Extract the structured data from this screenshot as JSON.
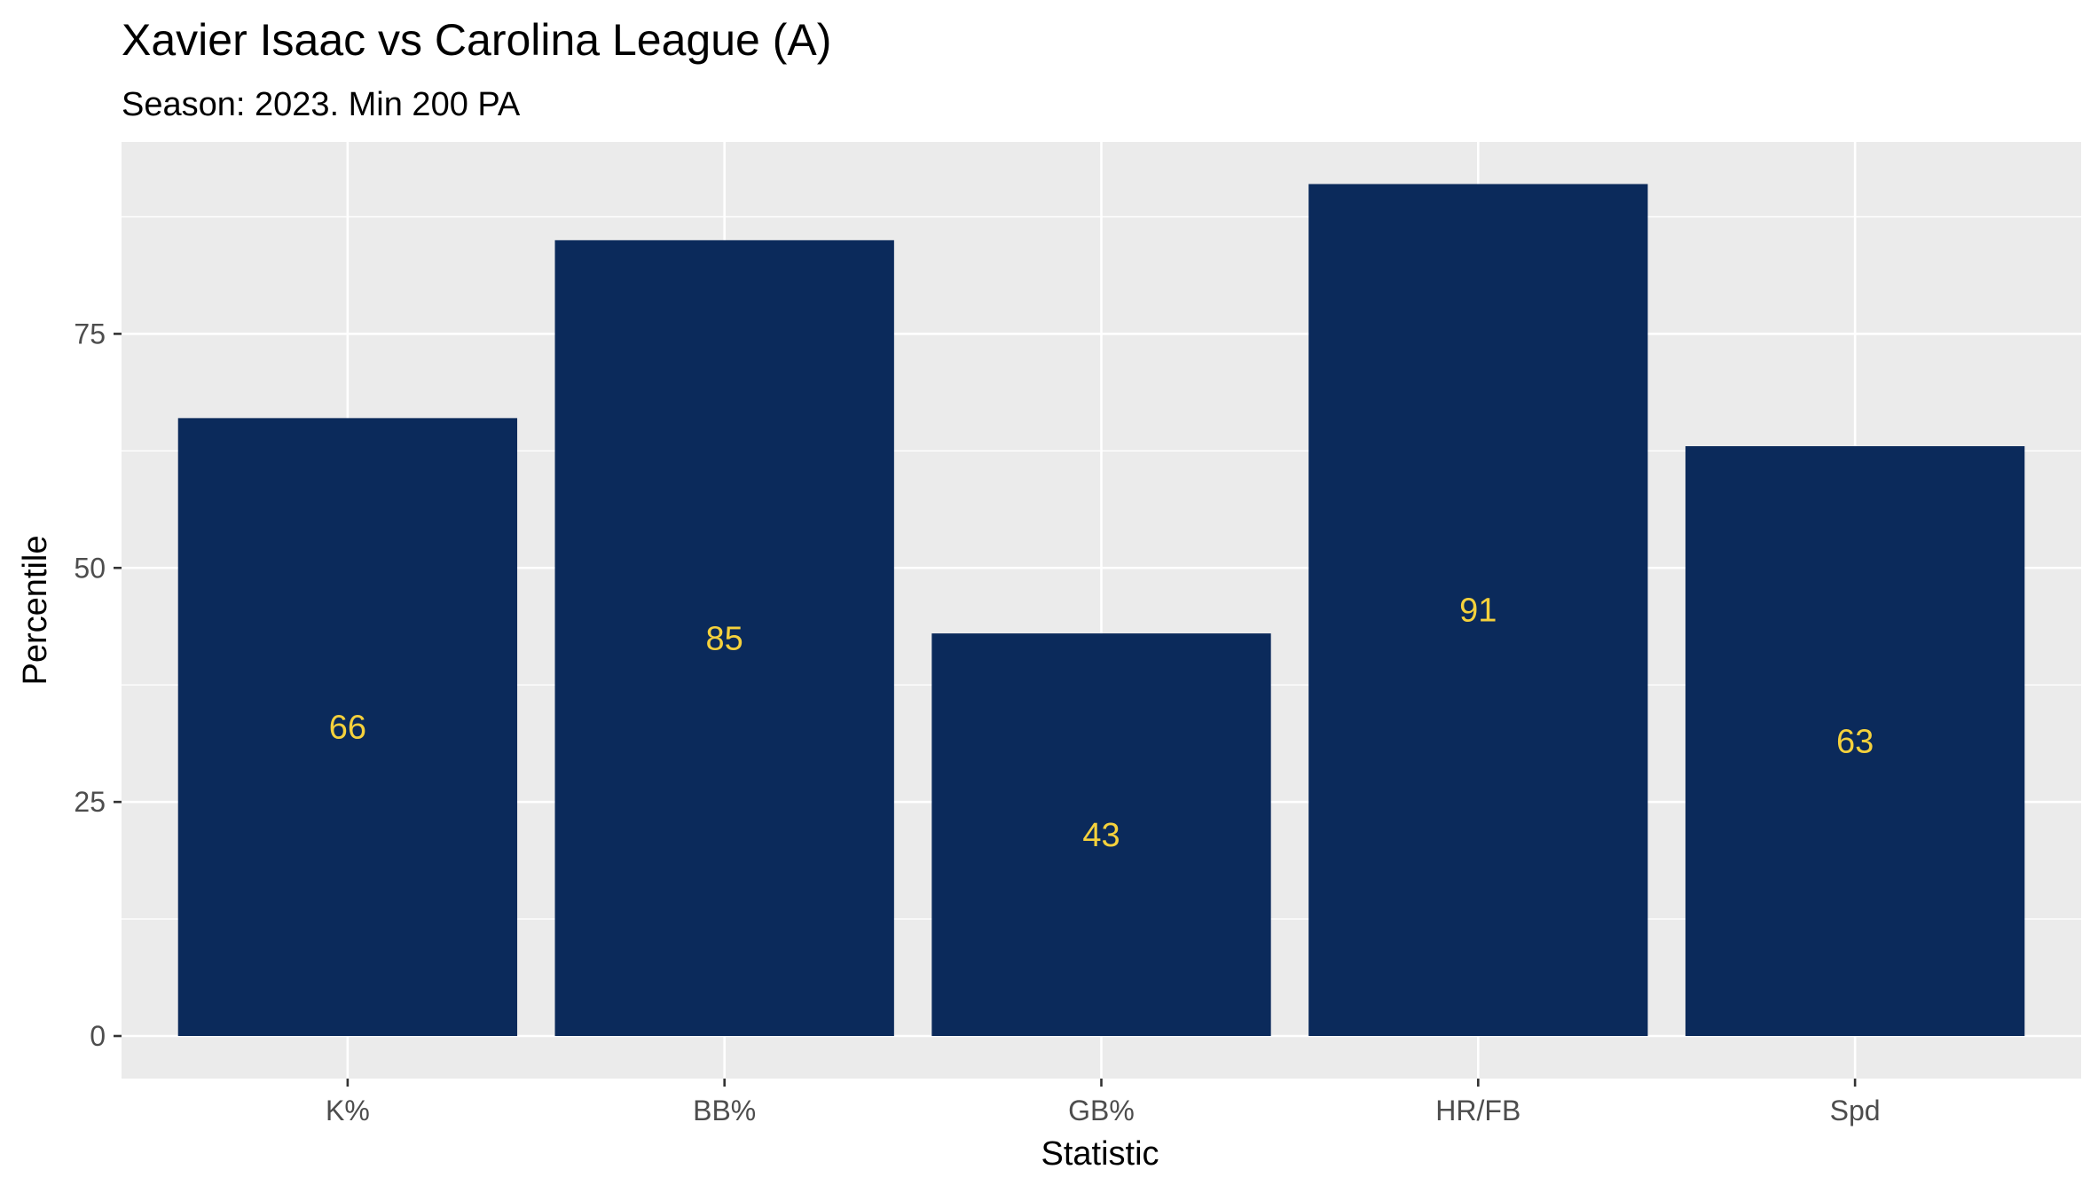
{
  "chart_data": {
    "type": "bar",
    "title": "Xavier Isaac vs Carolina League (A)",
    "subtitle": "Season: 2023. Min 200 PA",
    "xlabel": "Statistic",
    "ylabel": "Percentile",
    "categories": [
      "K%",
      "BB%",
      "GB%",
      "HR/FB",
      "Spd"
    ],
    "values": [
      66,
      85,
      43,
      91,
      63
    ],
    "data_labels": [
      "66",
      "85",
      "43",
      "91",
      "63"
    ],
    "ylim": [
      0,
      95.5
    ],
    "yticks": [
      0,
      25,
      50,
      75
    ],
    "ytick_labels": [
      "0",
      "25",
      "50",
      "75"
    ],
    "grid": true,
    "legend": "none",
    "colors": {
      "bar": "#0b2a5b",
      "label": "#f5d13c",
      "panel": "#ebebeb",
      "grid": "#ffffff"
    }
  }
}
